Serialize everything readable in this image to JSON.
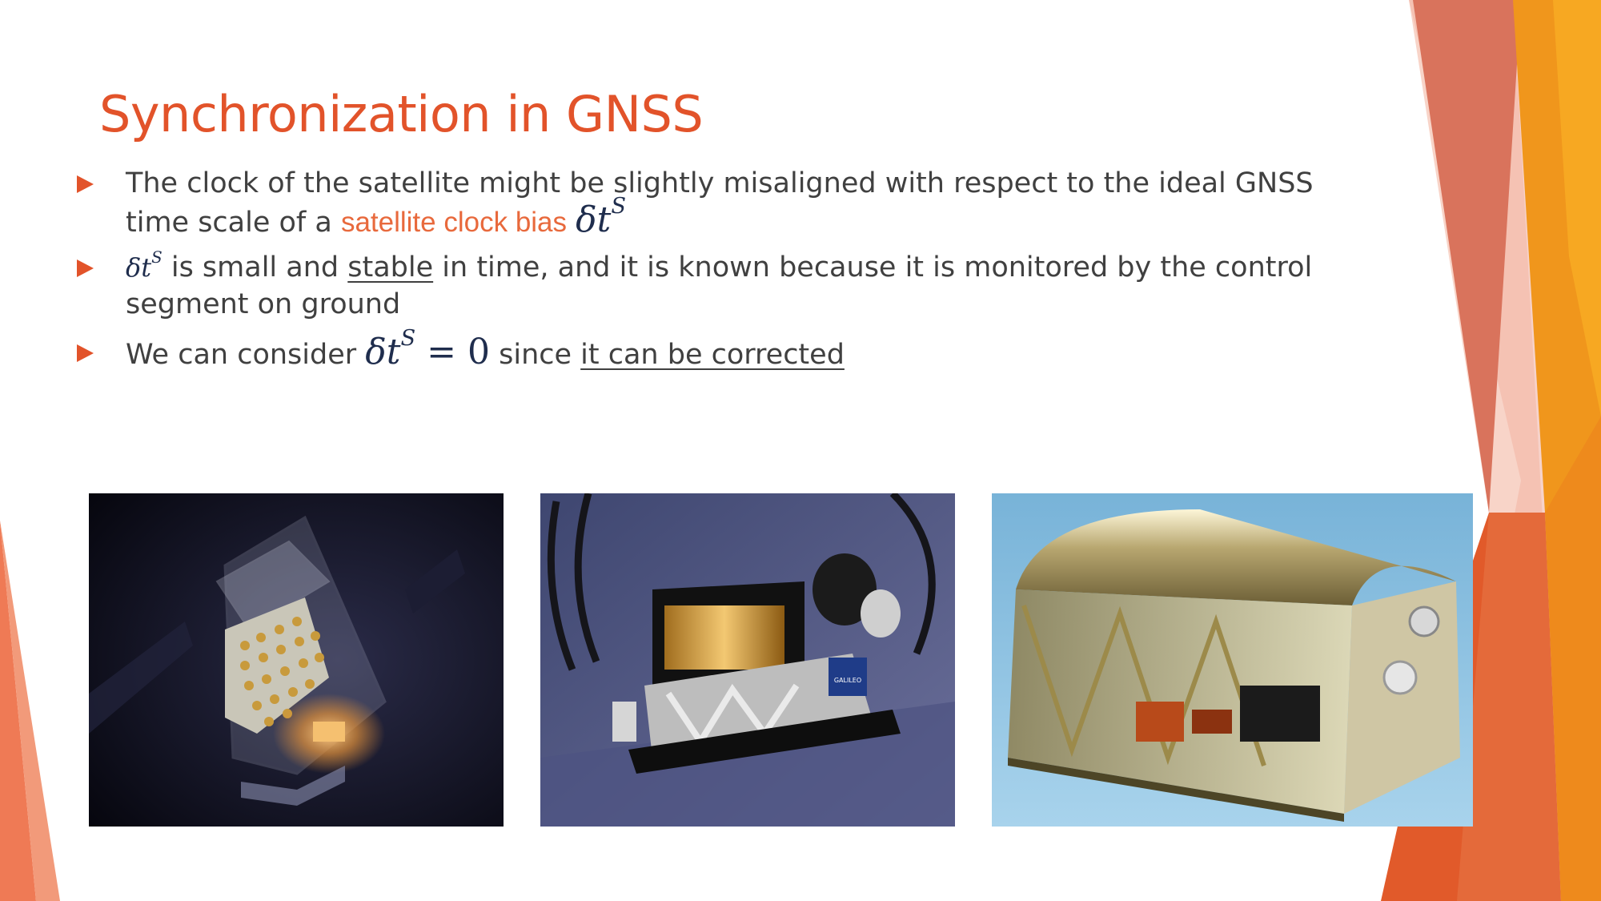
{
  "slide": {
    "title": "Synchronization in GNSS",
    "bullets": [
      {
        "text_before": "The clock of the satellite might be slightly misaligned with respect to the ideal GNSS time scale of a ",
        "highlight": "satellite clock bias",
        "math_base": "δt",
        "math_sup": "S"
      },
      {
        "math_base": "δt",
        "math_sup": "S",
        "text_a": " is small and ",
        "underlined": "stable",
        "text_b": " in time, and it is known because it is monitored by the control segment on ground"
      },
      {
        "text_before": "We can consider ",
        "math_base": "δt",
        "math_sup": "S",
        "math_eq": " = 0",
        "text_mid": " since ",
        "underlined": "it can be corrected"
      }
    ]
  },
  "images": [
    {
      "name": "satellite-render-image",
      "label": "GALILEO satellite transparent render"
    },
    {
      "name": "clock-module-render-image",
      "label": "clock module render"
    },
    {
      "name": "atomic-clock-photo",
      "label": "atomic clock hardware"
    }
  ],
  "image_text": {
    "galileo_badge": "GALILEO"
  },
  "colors": {
    "accent": "#e2532a",
    "highlight": "#e8693c",
    "body_text": "#404040",
    "math": "#1f2d4d"
  }
}
